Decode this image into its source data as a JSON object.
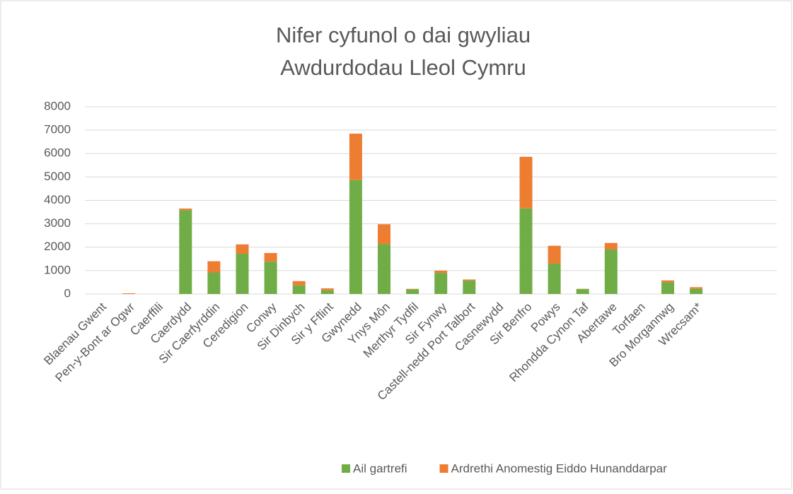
{
  "chart_data": {
    "type": "stacked_bar",
    "title": [
      "Nifer cyfunol o dai gwyliau",
      "Awdurdodau Lleol Cymru"
    ],
    "categories": [
      "Blaenau Gwent",
      "Pen-y-Bont ar Ogwr",
      "Caerffili",
      "Caerdydd",
      "Sir Caerfyrddin",
      "Ceredigion",
      "Conwy",
      "Sir Dinbych",
      "Sir y Fflint",
      "Gwynedd",
      "Ynys Môn",
      "Merthyr Tydfil",
      "Sir Fynwy",
      "Castell-nedd Port Talbort",
      "Casnewydd",
      "Sir Benfro",
      "Powys",
      "Rhondda Cynon Taf",
      "Abertawe",
      "Torfaen",
      "Bro Morgannwg",
      "Wrecsam*"
    ],
    "series": [
      {
        "name": "Ail gartrefi",
        "color": "#70ad47",
        "values": [
          0,
          0,
          0,
          3580,
          920,
          1720,
          1380,
          370,
          160,
          4870,
          2130,
          200,
          900,
          570,
          0,
          3660,
          1300,
          210,
          1900,
          0,
          500,
          220
        ]
      },
      {
        "name": "Ardrethi Anomestig Eiddo Hunanddarpar",
        "color": "#ed7d31",
        "values": [
          0,
          30,
          0,
          70,
          480,
          400,
          370,
          180,
          80,
          1980,
          850,
          20,
          100,
          50,
          0,
          2200,
          760,
          10,
          280,
          0,
          80,
          70
        ]
      }
    ],
    "ylim": [
      0,
      8000
    ],
    "yticks": [
      0,
      1000,
      2000,
      3000,
      4000,
      5000,
      6000,
      7000,
      8000
    ],
    "grid": true,
    "legend": "bottom"
  }
}
